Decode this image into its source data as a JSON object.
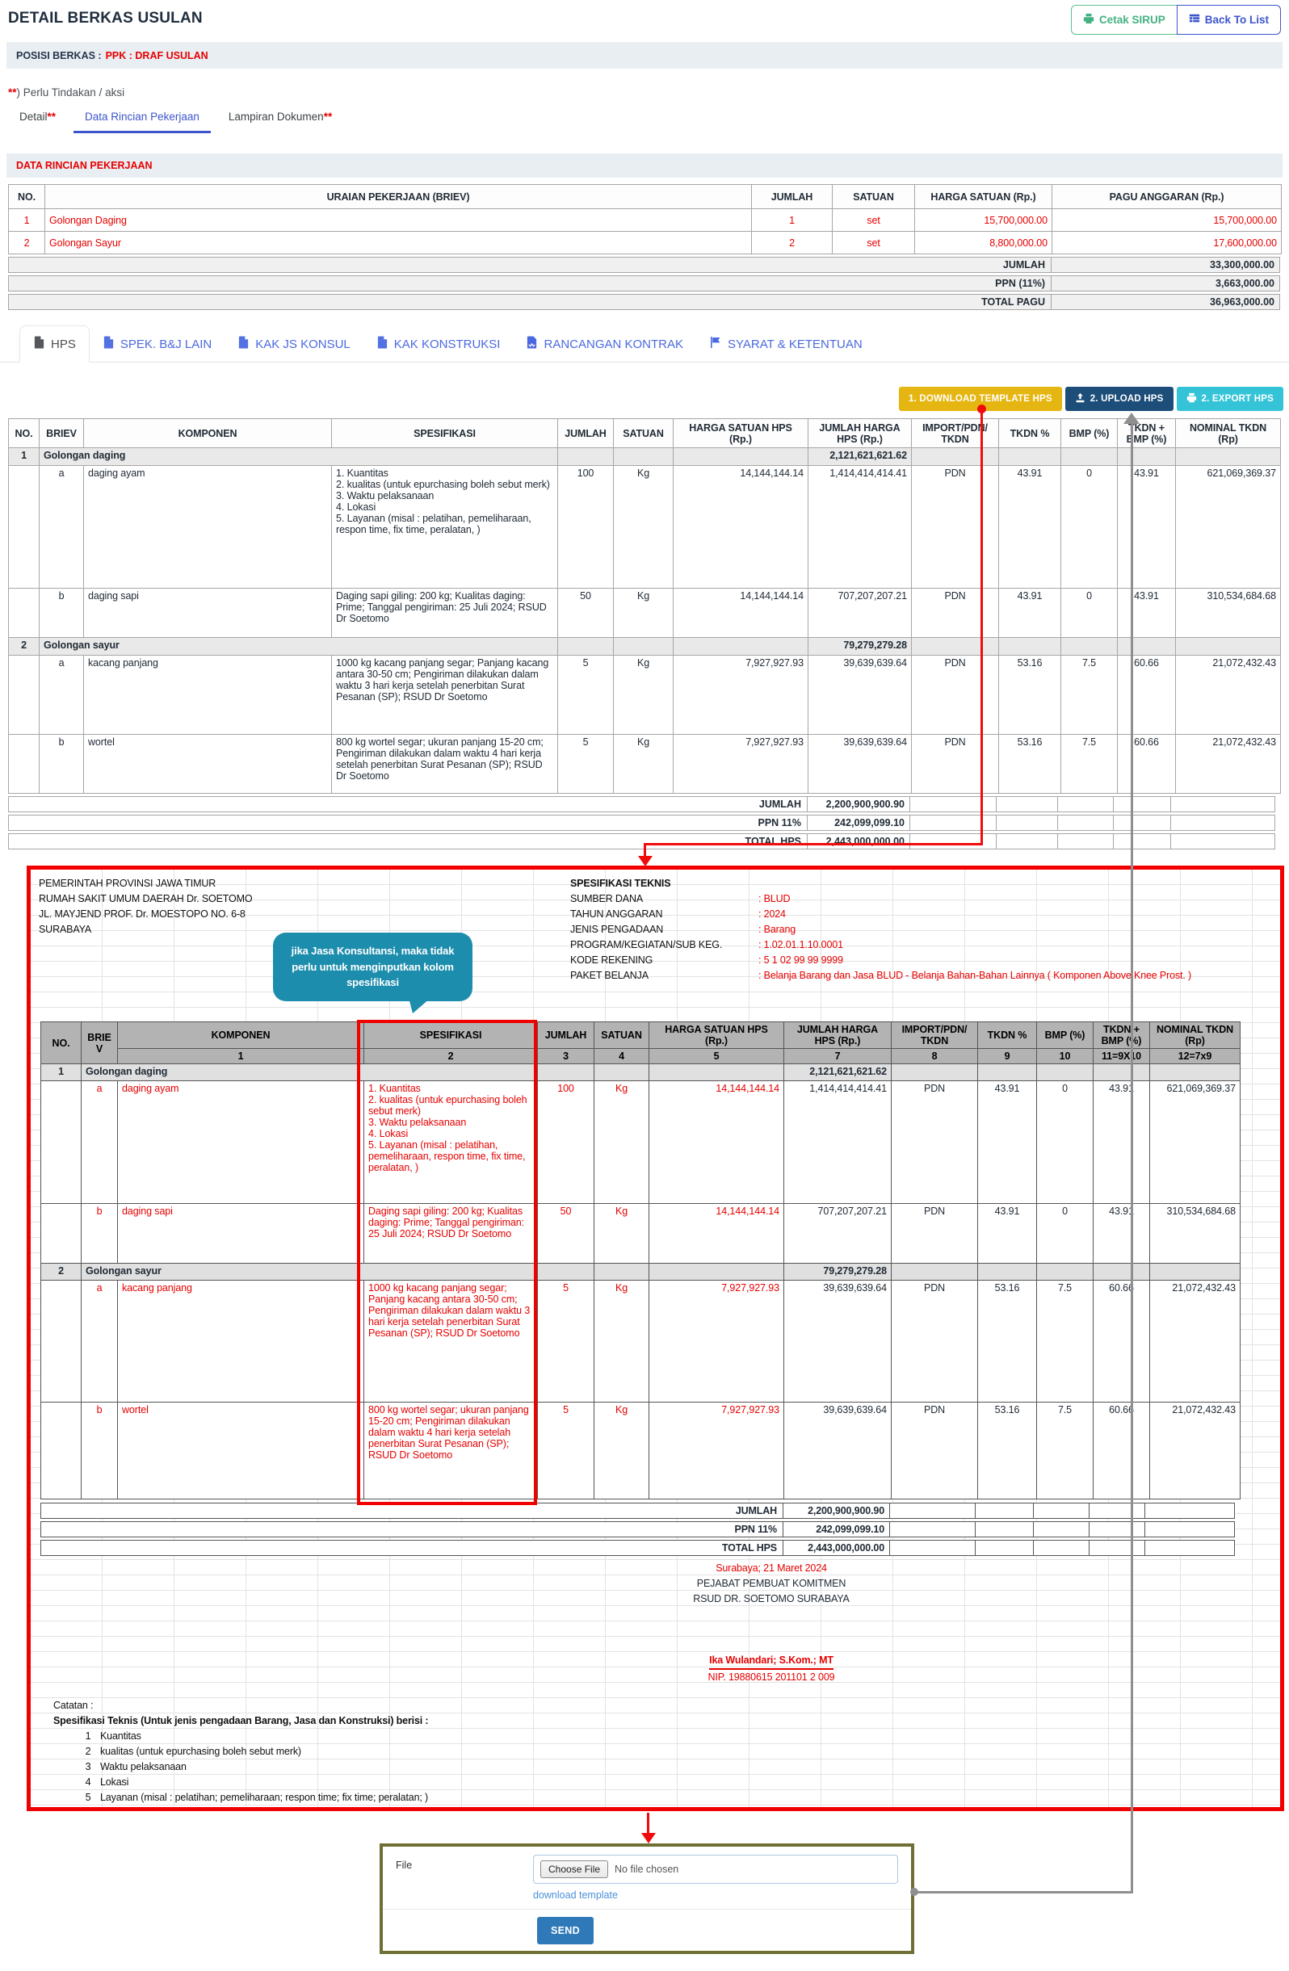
{
  "header": {
    "title": "DETAIL BERKAS USULAN",
    "cetak_sirup": "Cetak SIRUP",
    "back_to_list": "Back To List",
    "posisi_label": "POSISI BERKAS :",
    "posisi_value": "PPK : DRAF USULAN",
    "note_stars": "**",
    "note_rest": ") Perlu Tindakan / aksi"
  },
  "tabs": [
    {
      "label": "Detail",
      "suffix": "**",
      "active": false
    },
    {
      "label": "Data Rincian Pekerjaan",
      "suffix": "",
      "active": true
    },
    {
      "label": "Lampiran Dokumen",
      "suffix": "**",
      "active": false
    }
  ],
  "section_title": "DATA RINCIAN PEKERJAAN",
  "summary_table": {
    "headers": [
      "NO.",
      "URAIAN PEKERJAAN (BRIEV)",
      "JUMLAH",
      "SATUAN",
      "HARGA SATUAN (Rp.)",
      "PAGU ANGGARAN (Rp.)"
    ],
    "rows": [
      {
        "no": "1",
        "uraian": "Golongan Daging",
        "jumlah": "1",
        "satuan": "set",
        "harga": "15,700,000.00",
        "pagu": "15,700,000.00"
      },
      {
        "no": "2",
        "uraian": "Golongan Sayur",
        "jumlah": "2",
        "satuan": "set",
        "harga": "8,800,000.00",
        "pagu": "17,600,000.00"
      }
    ],
    "totals": [
      {
        "label": "JUMLAH",
        "value": "33,300,000.00"
      },
      {
        "label": "PPN (11%)",
        "value": "3,663,000.00"
      },
      {
        "label": "TOTAL PAGU",
        "value": "36,963,000.00"
      }
    ]
  },
  "hps_tabs": [
    {
      "label": "HPS",
      "icon": "document-icon",
      "active": true
    },
    {
      "label": "SPEK. B&J LAIN",
      "icon": "document-icon",
      "active": false
    },
    {
      "label": "KAK JS KONSUL",
      "icon": "document-icon",
      "active": false
    },
    {
      "label": "KAK KONSTRUKSI",
      "icon": "document-icon",
      "active": false
    },
    {
      "label": "RANCANGAN KONTRAK",
      "icon": "file-signature-icon",
      "active": false
    },
    {
      "label": "SYARAT & KETENTUAN",
      "icon": "flag-icon",
      "active": false
    }
  ],
  "hps_actions": {
    "download": "1. DOWNLOAD TEMPLATE HPS",
    "upload": "2. UPLOAD HPS",
    "export": "2. EXPORT HPS"
  },
  "hps_table": {
    "headers": [
      "NO.",
      "BRIEV",
      "KOMPONEN",
      "SPESIFIKASI",
      "JUMLAH",
      "SATUAN",
      "HARGA SATUAN HPS (Rp.)",
      "JUMLAH HARGA HPS (Rp.)",
      "IMPORT/PDN/ TKDN",
      "TKDN %",
      "BMP (%)",
      "TKDN + BMP (%)",
      "NOMINAL TKDN (Rp)"
    ],
    "totals": [
      {
        "label": "JUMLAH",
        "value": "2,200,900,900.90"
      },
      {
        "label": "PPN 11%",
        "value": "242,099,099.10"
      },
      {
        "label": "TOTAL HPS",
        "value": "2,443,000,000.00"
      }
    ]
  },
  "hps_items": [
    {
      "no": "1",
      "group": "Golongan daging",
      "group_total": "2,121,621,621.62",
      "rows": [
        {
          "briev": "a",
          "komponen": "daging ayam",
          "spes": "1. Kuantitas\n2. kualitas (untuk epurchasing boleh sebut merk)\n3. Waktu pelaksanaan\n4. Lokasi\n5. Layanan (misal : pelatihan, pemeliharaan, respon time, fix time, peralatan, )",
          "jumlah": "100",
          "satuan": "Kg",
          "harga_satuan": "14,144,144.14",
          "jumlah_harga": "1,414,414,414.41",
          "import_pdn": "PDN",
          "tkdn": "43.91",
          "bmp": "0",
          "tkdn_bmp": "43.91",
          "nominal": "621,069,369.37"
        },
        {
          "briev": "b",
          "komponen": "daging sapi",
          "spes": "Daging sapi giling: 200 kg; Kualitas daging: Prime; Tanggal pengiriman: 25 Juli 2024; RSUD Dr Soetomo",
          "jumlah": "50",
          "satuan": "Kg",
          "harga_satuan": "14,144,144.14",
          "jumlah_harga": "707,207,207.21",
          "import_pdn": "PDN",
          "tkdn": "43.91",
          "bmp": "0",
          "tkdn_bmp": "43.91",
          "nominal": "310,534,684.68"
        }
      ]
    },
    {
      "no": "2",
      "group": "Golongan sayur",
      "group_total": "79,279,279.28",
      "rows": [
        {
          "briev": "a",
          "komponen": "kacang panjang",
          "spes": "1000 kg kacang panjang segar; Panjang kacang antara 30-50 cm; Pengiriman dilakukan dalam waktu 3 hari kerja setelah penerbitan Surat Pesanan (SP); RSUD Dr Soetomo",
          "jumlah": "5",
          "satuan": "Kg",
          "harga_satuan": "7,927,927.93",
          "jumlah_harga": "39,639,639.64",
          "import_pdn": "PDN",
          "tkdn": "53.16",
          "bmp": "7.5",
          "tkdn_bmp": "60.66",
          "nominal": "21,072,432.43"
        },
        {
          "briev": "b",
          "komponen": "wortel",
          "spes": "800 kg wortel segar; ukuran panjang 15-20 cm; Pengiriman dilakukan dalam waktu 4 hari kerja setelah penerbitan Surat Pesanan (SP); RSUD Dr Soetomo",
          "jumlah": "5",
          "satuan": "Kg",
          "harga_satuan": "7,927,927.93",
          "jumlah_harga": "39,639,639.64",
          "import_pdn": "PDN",
          "tkdn": "53.16",
          "bmp": "7.5",
          "tkdn_bmp": "60.66",
          "nominal": "21,072,432.43"
        }
      ]
    }
  ],
  "document": {
    "kop": [
      "PEMERINTAH PROVINSI JAWA TIMUR",
      "RUMAH SAKIT UMUM DAERAH Dr. SOETOMO",
      "JL. MAYJEND PROF. Dr. MOESTOPO NO. 6-8",
      "SURABAYA"
    ],
    "spes_title": "SPESIFIKASI TEKNIS",
    "info": [
      {
        "label": "SUMBER DANA",
        "value": "BLUD"
      },
      {
        "label": "TAHUN ANGGARAN",
        "value": "2024"
      },
      {
        "label": "JENIS PENGADAAN",
        "value": "Barang"
      },
      {
        "label": "PROGRAM/KEGIATAN/SUB KEG.",
        "value": "1.02.01.1.10.0001"
      },
      {
        "label": "KODE REKENING",
        "value": "5 1 02 99 99 9999"
      },
      {
        "label": "PAKET BELANJA",
        "value": "Belanja Barang dan Jasa BLUD - Belanja Bahan-Bahan Lainnya ( Komponen Above Knee Prost. )"
      }
    ],
    "callout": "jika Jasa Konsultansi, maka tidak perlu untuk menginputkan kolom spesifikasi",
    "col_numbers": [
      "1",
      "2",
      "3",
      "4",
      "5",
      "7",
      "8",
      "9",
      "10",
      "11=9X10",
      "12=7x9"
    ],
    "signature": {
      "place_date": "Surabaya; 21 Maret 2024",
      "title1": "PEJABAT PEMBUAT KOMITMEN",
      "title2": "RSUD DR. SOETOMO SURABAYA",
      "name": "Ika Wulandari; S.Kom.; MT",
      "nip": "NIP. 19880615 201101 2 009"
    },
    "catatan_label": "Catatan :",
    "catatan_title": "Spesifikasi Teknis (Untuk jenis pengadaan Barang, Jasa dan Konstruksi) berisi :",
    "catatan_items": [
      "Kuantitas",
      "kualitas (untuk epurchasing boleh sebut merk)",
      "Waktu pelaksanaan",
      "Lokasi",
      "Layanan (misal : pelatihan; pemeliharaan; respon time; fix time; peralatan; )"
    ]
  },
  "upload": {
    "file_label": "File",
    "choose_file": "Choose File",
    "no_file": "No file chosen",
    "download_template": "download template",
    "send": "SEND"
  },
  "colors": {
    "red": "#e60000",
    "download_btn": "#e5b611",
    "upload_btn": "#1d4e79",
    "export_btn": "#35c4d7",
    "green_btn": "#44b182",
    "blue_btn": "#3d55cc",
    "callout": "#1d8dad",
    "olive_border": "#6f6f34",
    "link": "#4a90d9",
    "send_btn": "#2f79b9"
  }
}
